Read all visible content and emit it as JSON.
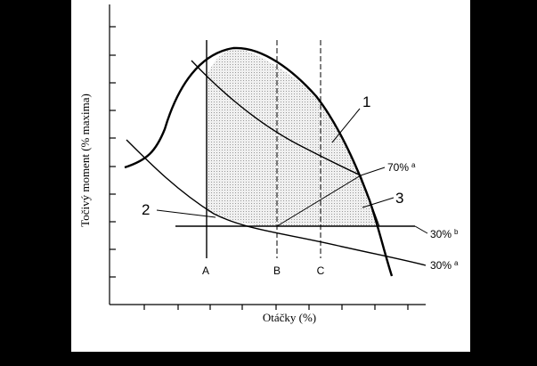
{
  "axes": {
    "y_label": "Točivý moment (% maxima)",
    "x_label": "Otáčky (%)"
  },
  "speed_lines": [
    "A",
    "B",
    "C"
  ],
  "regions": [
    "1",
    "2",
    "3"
  ],
  "curve_labels": [
    {
      "text": "70%",
      "note": "a"
    },
    {
      "text": "30%",
      "note": "b"
    },
    {
      "text": "30%",
      "note": "a"
    }
  ]
}
